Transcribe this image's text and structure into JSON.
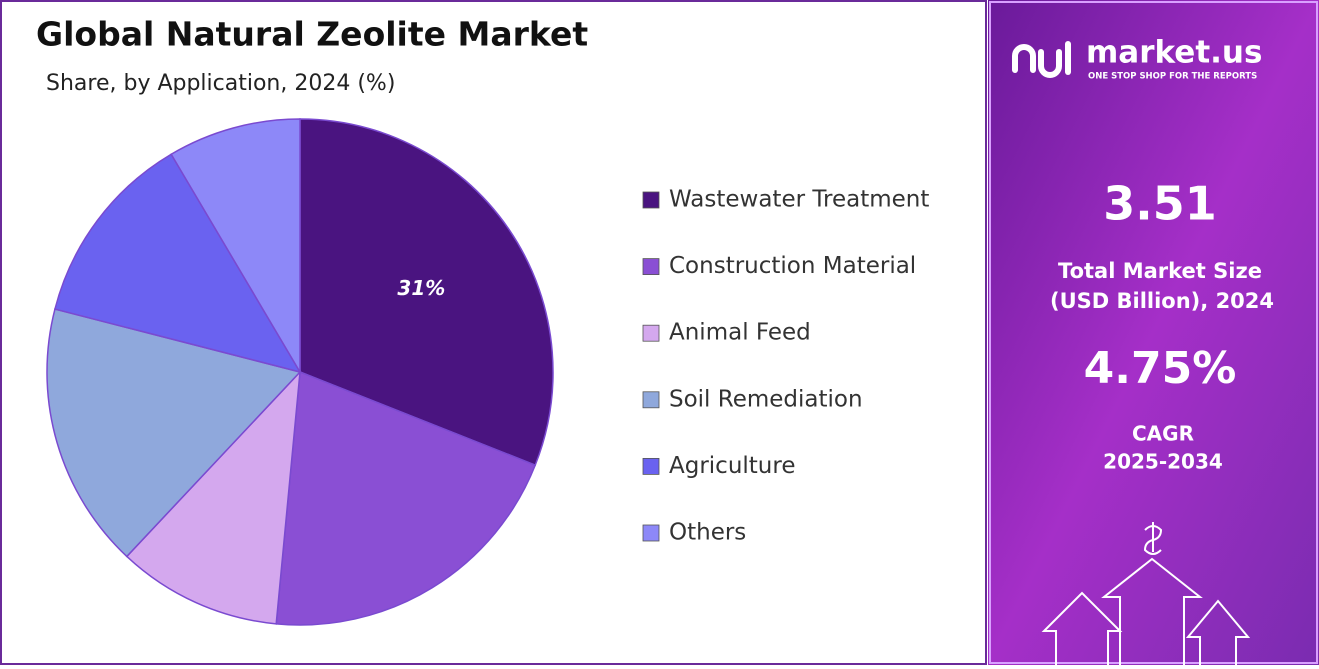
{
  "chart_data": {
    "type": "pie",
    "title": "Global Natural Zeolite Market",
    "subtitle": "Share, by Application, 2024 (%)",
    "categories": [
      "Wastewater Treatment",
      "Construction Material",
      "Animal Feed",
      "Soil Remediation",
      "Agriculture",
      "Others"
    ],
    "values": [
      31,
      20.5,
      10.5,
      17,
      12.5,
      8.5
    ],
    "value_labels": [
      "31%",
      null,
      null,
      null,
      null,
      null
    ],
    "colors": [
      "#4a1480",
      "#8a4fd4",
      "#d4a8ee",
      "#8fa8dc",
      "#6a62f0",
      "#8d88f8"
    ],
    "legend": "right"
  },
  "panel": {
    "brand": "market.us",
    "tagline": "ONE STOP SHOP FOR THE REPORTS",
    "market_size": "3.51",
    "market_size_label_1": "Total Market Size",
    "market_size_label_2": "(USD Billion), 2024",
    "cagr": "4.75%",
    "cagr_label_1": "CAGR",
    "cagr_label_2": "2025-2034"
  }
}
